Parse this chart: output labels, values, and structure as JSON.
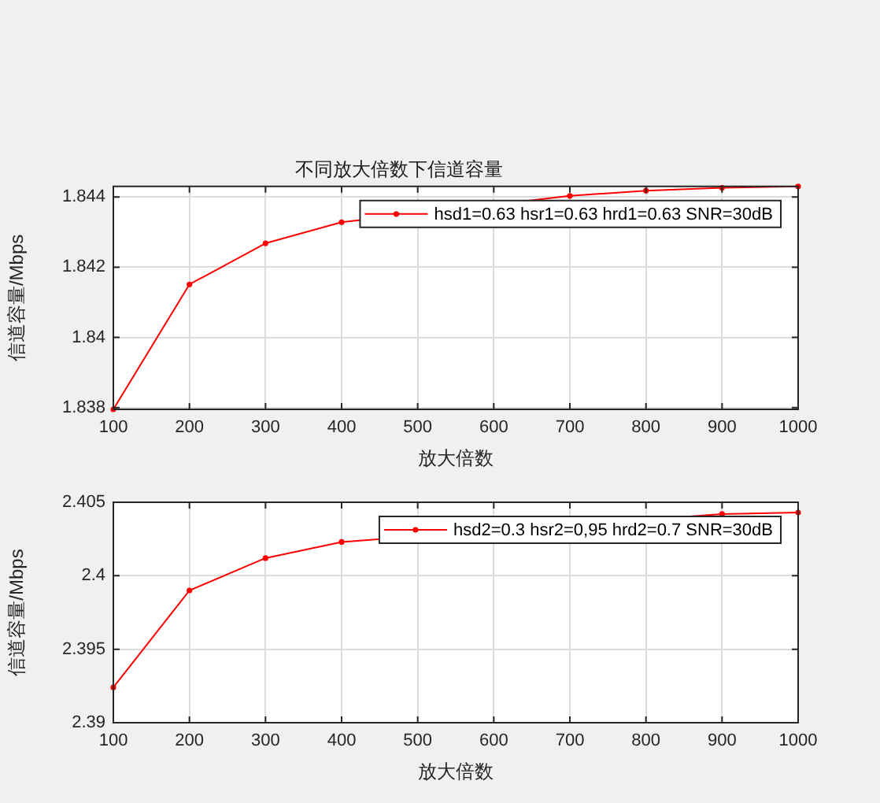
{
  "chart_data": [
    {
      "type": "line",
      "title": "不同放大倍数下信道容量",
      "xlabel": "放大倍数",
      "ylabel": "信道容量/Mbps",
      "x": [
        100,
        200,
        300,
        400,
        500,
        600,
        700,
        800,
        900,
        1000
      ],
      "series": [
        {
          "name": "hsd1=0.63 hsr1=0.63 hrd1=0.63 SNR=30dB",
          "color": "#ff0000",
          "values": [
            1.83795,
            1.84151,
            1.84268,
            1.84328,
            null,
            null,
            1.84403,
            1.84418,
            1.84426,
            1.8443
          ]
        }
      ],
      "xlim": [
        100,
        1000
      ],
      "xticks": [
        100,
        200,
        300,
        400,
        500,
        600,
        700,
        800,
        900,
        1000
      ],
      "ylim": [
        1.83795,
        1.8443
      ],
      "yticks": [
        1.838,
        1.84,
        1.842,
        1.844
      ],
      "grid": true,
      "legend": "top right",
      "marker": "circle",
      "line_style": "solid"
    },
    {
      "type": "line",
      "xlabel": "放大倍数",
      "ylabel": "信道容量/Mbps",
      "x": [
        100,
        200,
        300,
        400,
        500,
        600,
        700,
        800,
        900,
        1000
      ],
      "series": [
        {
          "name": "hsd2=0.3 hsr2=0,95 hrd2=0.7 SNR=30dB",
          "color": "#ff0000",
          "values": [
            2.3924,
            2.399,
            2.4012,
            2.4023,
            null,
            null,
            null,
            null,
            2.4042,
            2.4043
          ]
        }
      ],
      "xlim": [
        100,
        1000
      ],
      "xticks": [
        100,
        200,
        300,
        400,
        500,
        600,
        700,
        800,
        900,
        1000
      ],
      "ylim": [
        2.39,
        2.405
      ],
      "yticks": [
        2.39,
        2.395,
        2.4,
        2.405
      ],
      "grid": true,
      "legend": "top right",
      "marker": "circle",
      "line_style": "solid"
    }
  ]
}
